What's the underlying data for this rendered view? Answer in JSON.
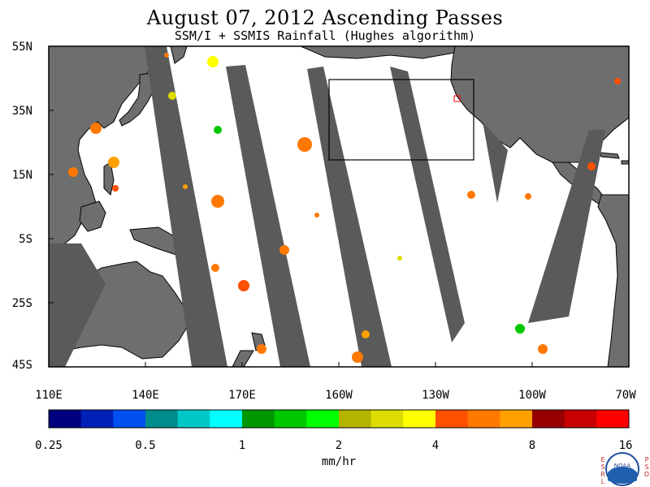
{
  "title": "August 07, 2012  Ascending Passes",
  "subtitle": "SSM/I + SSMIS Rainfall (Hughes algorithm)",
  "lat_labels": [
    "55N",
    "35N",
    "15N",
    "5S",
    "25S",
    "45S"
  ],
  "lon_labels": [
    "110E",
    "140E",
    "170E",
    "160W",
    "130W",
    "100W",
    "70W"
  ],
  "colorbar": {
    "colors": [
      "#00007f",
      "#0020b8",
      "#0050f0",
      "#008c8c",
      "#00c8c8",
      "#00ffff",
      "#009600",
      "#00c800",
      "#00ff00",
      "#b4b400",
      "#dcdc00",
      "#ffff00",
      "#ff5000",
      "#ff7800",
      "#ffa000",
      "#960000",
      "#c80000",
      "#ff0000"
    ],
    "tick_labels": [
      "0.25",
      "0.5",
      "1",
      "2",
      "4",
      "8",
      "16"
    ],
    "units": "mm/hr"
  },
  "colors": {
    "land": "#6e6e6e",
    "no_data_swath": "#5a5a5a",
    "ocean": "#ffffff"
  },
  "logo": {
    "name": "NOAA",
    "left_letters": "ESRL",
    "right_letters": "PSD"
  }
}
